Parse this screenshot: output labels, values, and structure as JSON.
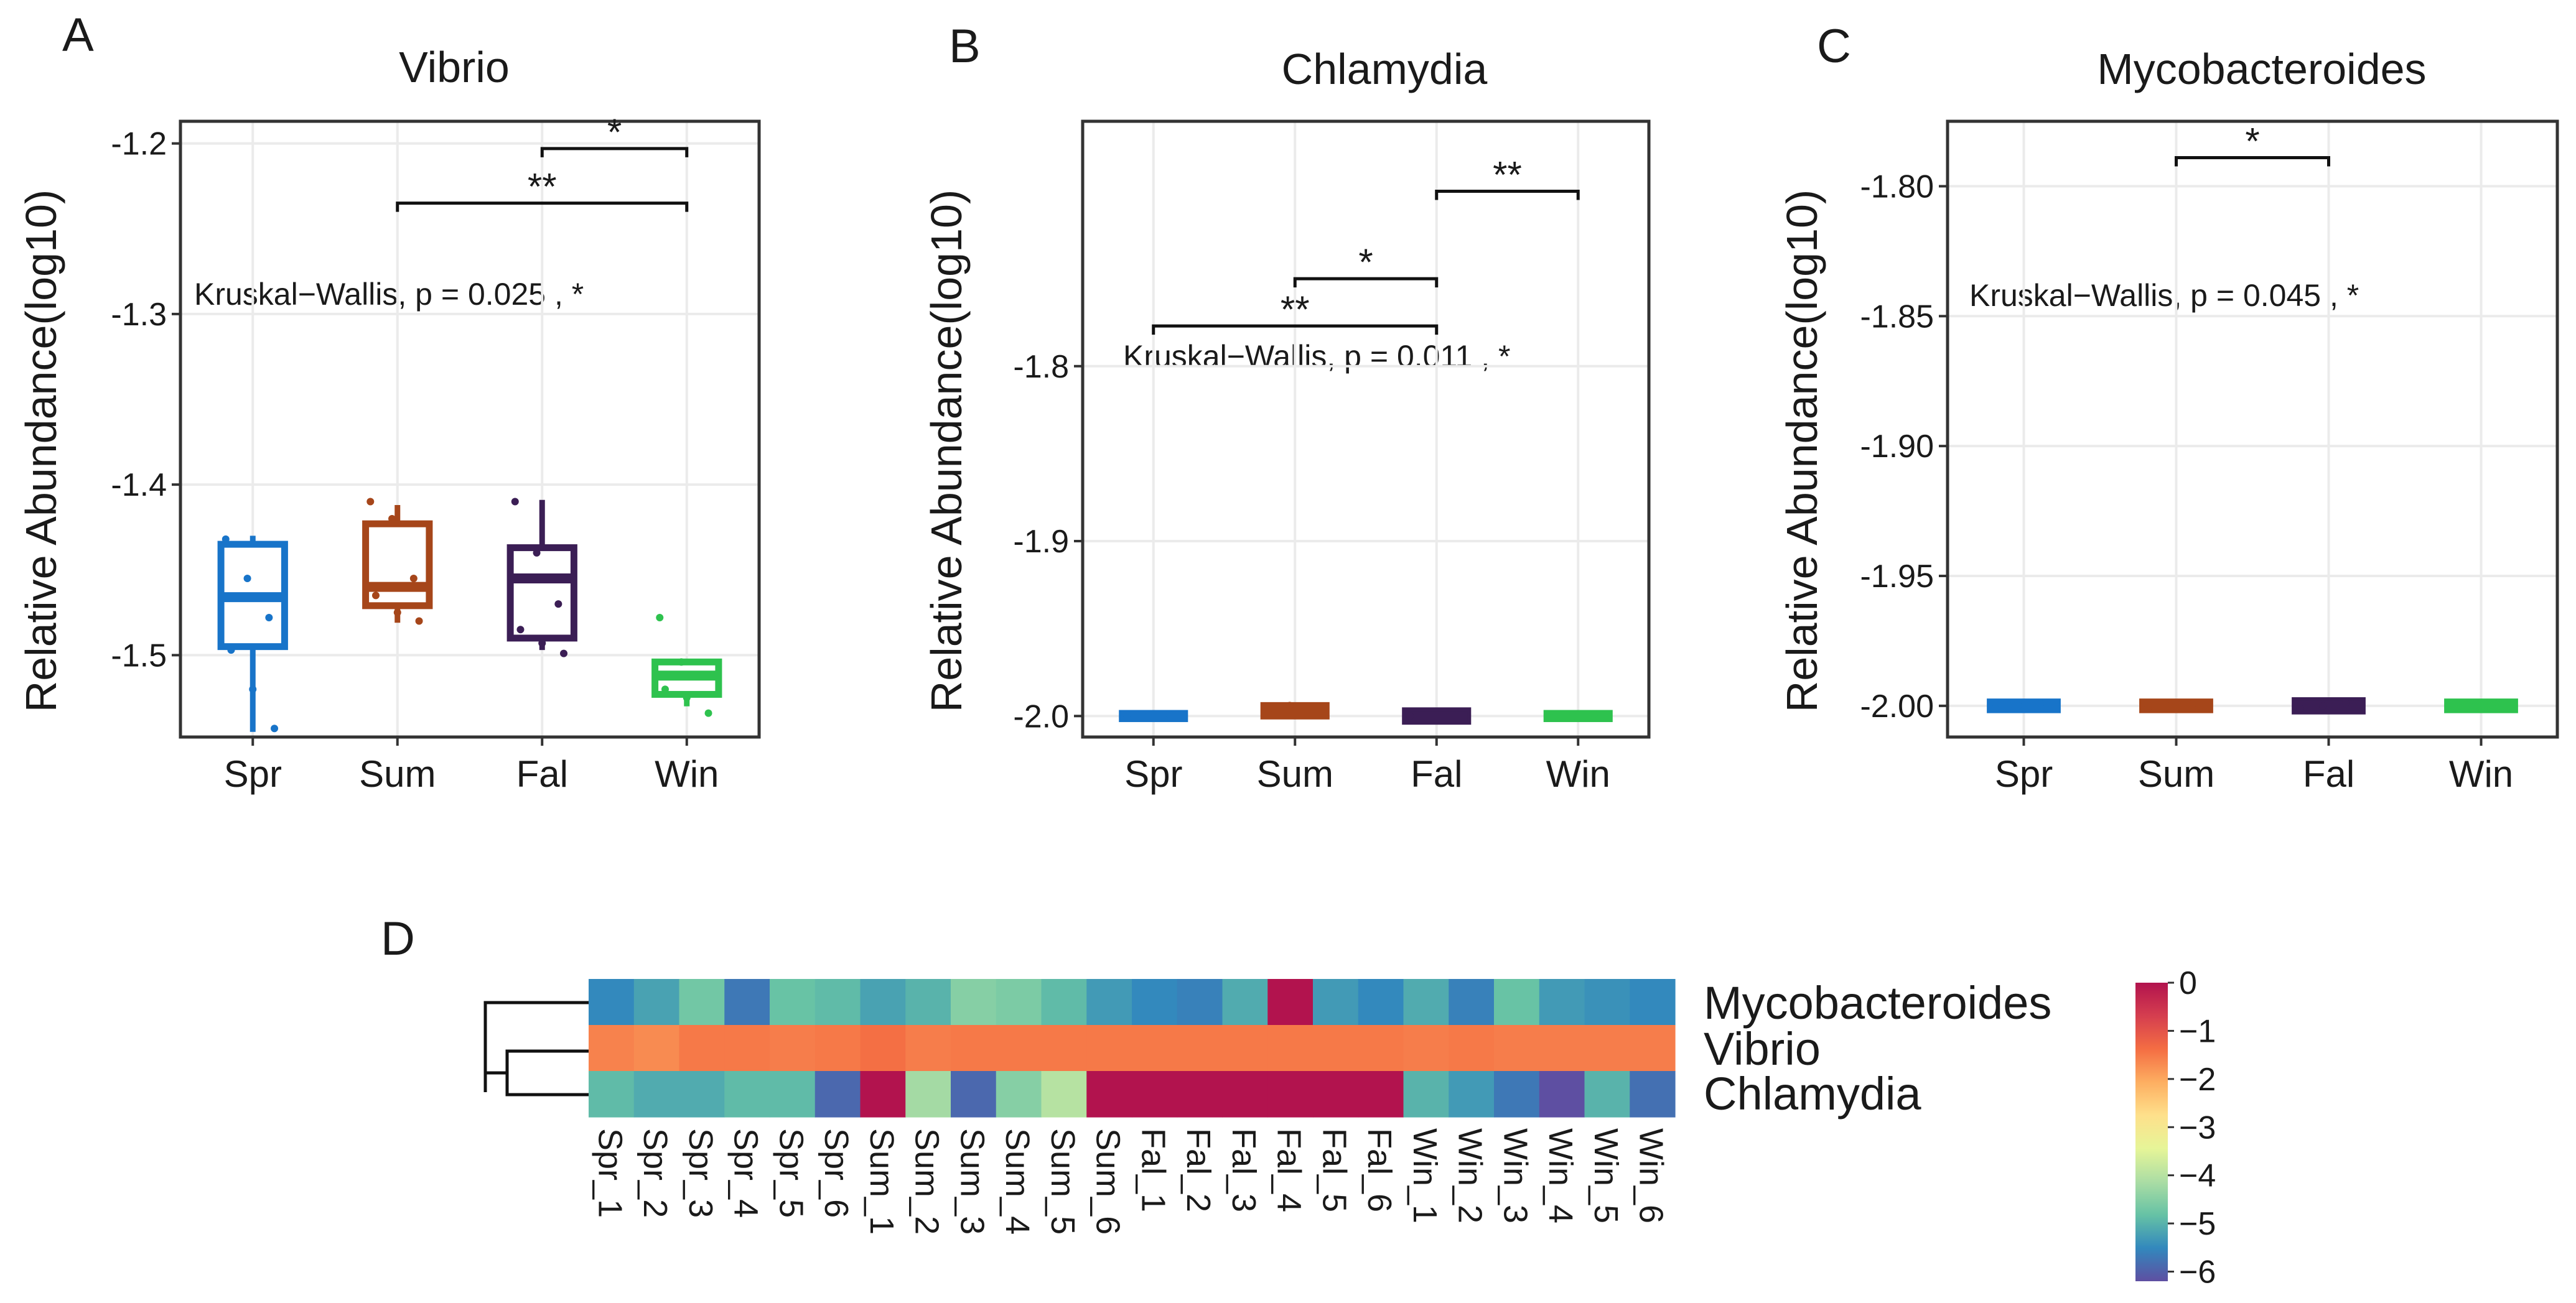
{
  "chart_data": [
    {
      "panel": "A",
      "type": "box",
      "title": "Vibrio",
      "ylabel": "Relative Abundance(log10)",
      "xlabel": "",
      "ylim": [
        -1.548,
        -1.187
      ],
      "yticks": [
        "-1.5",
        "-1.4",
        "-1.3",
        "-1.2"
      ],
      "ytick_values": [
        -1.5,
        -1.4,
        -1.3,
        -1.2
      ],
      "categories": [
        "Spr",
        "Sum",
        "Fal",
        "Win"
      ],
      "colors": [
        "#1874c9",
        "#a6461a",
        "#3b1e55",
        "#2ec24e"
      ],
      "boxes": [
        {
          "q1": -1.495,
          "median": -1.466,
          "q3": -1.435,
          "lower": -1.545,
          "upper": -1.43,
          "points": [
            -1.432,
            -1.455,
            -1.478,
            -1.497,
            -1.52,
            -1.543
          ]
        },
        {
          "q1": -1.471,
          "median": -1.46,
          "q3": -1.423,
          "lower": -1.481,
          "upper": -1.412,
          "points": [
            -1.41,
            -1.42,
            -1.455,
            -1.465,
            -1.475,
            -1.48
          ]
        },
        {
          "q1": -1.49,
          "median": -1.455,
          "q3": -1.437,
          "lower": -1.497,
          "upper": -1.409,
          "points": [
            -1.41,
            -1.44,
            -1.47,
            -1.485,
            -1.493,
            -1.499
          ]
        },
        {
          "q1": -1.523,
          "median": -1.512,
          "q3": -1.504,
          "lower": -1.53,
          "upper": -1.504,
          "points": [
            -1.478,
            -1.504,
            -1.512,
            -1.52,
            -1.525,
            -1.534
          ]
        }
      ],
      "annotation": "Kruskal−Wallis, p = 0.025 , *",
      "comparisons": [
        {
          "from": 2,
          "to": 3,
          "level": -1.203,
          "label": "*"
        },
        {
          "from": 1,
          "to": 3,
          "level": -1.235,
          "label": "**"
        }
      ]
    },
    {
      "panel": "B",
      "type": "box",
      "title": "Chlamydia",
      "ylabel": "Relative Abundance(log10)",
      "xlabel": "",
      "ylim": [
        -2.012,
        -1.66
      ],
      "yticks": [
        "-2.0",
        "-1.9",
        "-1.8"
      ],
      "ytick_values": [
        -2.0,
        -1.9,
        -1.8
      ],
      "categories": [
        "Spr",
        "Sum",
        "Fal",
        "Win"
      ],
      "colors": [
        "#1874c9",
        "#a6461a",
        "#3b1e55",
        "#2ec24e"
      ],
      "boxes": [
        {
          "q1": -2.0015,
          "median": -2.0,
          "q3": -1.9985,
          "lower": -2.002,
          "upper": -1.998,
          "points": [
            -2.001,
            -2.0,
            -1.999
          ]
        },
        {
          "q1": -2.0,
          "median": -1.998,
          "q3": -1.994,
          "lower": -2.0,
          "upper": -1.994,
          "points": [
            -1.996,
            -1.994
          ]
        },
        {
          "q1": -2.003,
          "median": -2.0,
          "q3": -1.997,
          "lower": -2.003,
          "upper": -1.997,
          "points": [
            -2.0
          ]
        },
        {
          "q1": -2.0015,
          "median": -2.0,
          "q3": -1.9985,
          "lower": -2.002,
          "upper": -1.998,
          "points": [
            -2.001,
            -2.0,
            -1.999
          ]
        }
      ],
      "annotation": "Kruskal−Wallis, p = 0.011 , *",
      "comparisons": [
        {
          "from": 2,
          "to": 3,
          "level": -1.7,
          "label": "**"
        },
        {
          "from": 1,
          "to": 2,
          "level": -1.75,
          "label": "*"
        },
        {
          "from": 0,
          "to": 2,
          "level": -1.777,
          "label": "**"
        }
      ]
    },
    {
      "panel": "C",
      "type": "box",
      "title": "Mycobacteroides",
      "ylabel": "Relative Abundance(log10)",
      "xlabel": "",
      "ylim": [
        -2.012,
        -1.775
      ],
      "yticks": [
        "-2.00",
        "-1.95",
        "-1.90",
        "-1.85",
        "-1.80"
      ],
      "ytick_values": [
        -2.0,
        -1.95,
        -1.9,
        -1.85,
        -1.8
      ],
      "categories": [
        "Spr",
        "Sum",
        "Fal",
        "Win"
      ],
      "colors": [
        "#1874c9",
        "#a6461a",
        "#3b1e55",
        "#2ec24e"
      ],
      "boxes": [
        {
          "q1": -2.0015,
          "median": -2.0,
          "q3": -1.9985,
          "lower": -2.002,
          "upper": -1.998,
          "points": [
            -2.001,
            -2.0,
            -1.999
          ]
        },
        {
          "q1": -2.0015,
          "median": -2.0,
          "q3": -1.9985,
          "lower": -2.002,
          "upper": -1.998,
          "points": [
            -2.001,
            -2.0,
            -1.999
          ]
        },
        {
          "q1": -2.002,
          "median": -2.0,
          "q3": -1.998,
          "lower": -2.002,
          "upper": -1.998,
          "points": [
            -2.001,
            -2.0,
            -1.999
          ]
        },
        {
          "q1": -2.0015,
          "median": -2.0,
          "q3": -1.9985,
          "lower": -2.002,
          "upper": -1.998,
          "points": [
            -2.001,
            -2.0,
            -1.999
          ]
        }
      ],
      "annotation": "Kruskal−Wallis, p = 0.045 , *",
      "comparisons": [
        {
          "from": 1,
          "to": 2,
          "level": -1.789,
          "label": "*"
        }
      ]
    },
    {
      "panel": "D",
      "type": "heatmap",
      "rows": [
        "Mycobacteroides",
        "Vibrio",
        "Chlamydia"
      ],
      "columns": [
        "Spr_1",
        "Spr_2",
        "Spr_3",
        "Spr_4",
        "Spr_5",
        "Spr_6",
        "Sum_1",
        "Sum_2",
        "Sum_3",
        "Sum_4",
        "Sum_5",
        "Sum_6",
        "Fal_1",
        "Fal_2",
        "Fal_3",
        "Fal_4",
        "Fal_5",
        "Fal_6",
        "Win_1",
        "Win_2",
        "Win_3",
        "Win_4",
        "Win_5",
        "Win_6"
      ],
      "values": [
        [
          -5.5,
          -5.2,
          -4.7,
          -5.7,
          -4.8,
          -4.9,
          -5.2,
          -5.0,
          -4.5,
          -4.6,
          -4.9,
          -5.3,
          -5.5,
          -5.6,
          -5.1,
          0.0,
          -5.3,
          -5.5,
          -5.1,
          -5.6,
          -4.8,
          -5.3,
          -5.4,
          -5.5
        ],
        [
          -1.6,
          -1.7,
          -1.5,
          -1.5,
          -1.55,
          -1.5,
          -1.4,
          -1.55,
          -1.5,
          -1.5,
          -1.5,
          -1.5,
          -1.5,
          -1.5,
          -1.5,
          -1.5,
          -1.5,
          -1.5,
          -1.55,
          -1.5,
          -1.55,
          -1.55,
          -1.55,
          -1.55
        ],
        [
          -4.9,
          -5.1,
          -5.1,
          -4.9,
          -4.9,
          -5.9,
          0.0,
          -4.2,
          -5.9,
          -4.5,
          -4.0,
          0.0,
          0.0,
          0.0,
          0.0,
          0.0,
          0.0,
          0.0,
          -5.0,
          -5.3,
          -5.7,
          -6.2,
          -5.0,
          -5.8
        ]
      ],
      "colorbar_ticks": [
        "0",
        "−1",
        "−2",
        "−3",
        "−4",
        "−5",
        "−6"
      ],
      "colorbar_values": [
        0,
        -1,
        -2,
        -3,
        -4,
        -5,
        -6
      ],
      "palette": [
        "#5e4fa2",
        "#3288bd",
        "#66c2a5",
        "#abdda4",
        "#e6f598",
        "#fee08b",
        "#fdae61",
        "#f46d43",
        "#d53e4f",
        "#b2134e"
      ]
    }
  ]
}
